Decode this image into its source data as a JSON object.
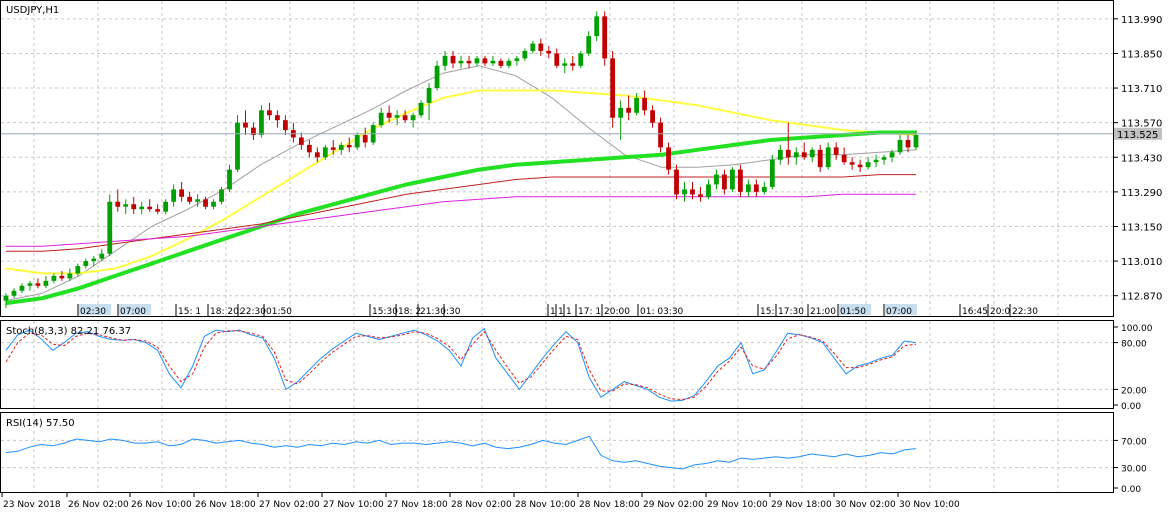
{
  "colors": {
    "background": "#ffffff",
    "grid": "#c8c8c8",
    "frame": "#000000",
    "bull_candle": "#00a000",
    "bear_candle": "#c00000",
    "ma_green": "#22e022",
    "ma_yellow": "#ffff40",
    "ma_red": "#c02020",
    "ma_magenta": "#e020e0",
    "ma_gray": "#a0a0a0",
    "stoch_main": "#1e90ff",
    "stoch_signal": "#e02020",
    "rsi_line": "#1e90ff",
    "price_tag_bg": "#c0c0c0",
    "time_tag_bg": "#c8dff0"
  },
  "chart_data": [
    {
      "type": "candlestick",
      "title": "USDJPY,H1",
      "y_ticks": [
        "113.990",
        "113.850",
        "113.710",
        "113.570",
        "113.430",
        "113.290",
        "113.150",
        "113.010",
        "112.870"
      ],
      "ylim": [
        112.8,
        114.05
      ],
      "current_price": "113.525",
      "current_price_value": 113.525,
      "session_labels": [
        "02:30",
        "07:00",
        "15: 1",
        "18: 20:",
        "22:30",
        "01:50",
        "15:30",
        "18: 2",
        "21:30",
        ":30",
        "1",
        "1",
        "1",
        "17: 1",
        "20:00",
        "01: 03:30",
        "15:",
        "17:30",
        "21:00",
        "01:50",
        "07:00",
        "16:45",
        "20:0",
        "22:30"
      ],
      "highlight_labels": [
        "02:30",
        "07:00",
        "01:50",
        "07:00"
      ],
      "candles": [
        [
          112.85,
          112.88,
          112.82,
          112.87
        ],
        [
          112.87,
          112.9,
          112.86,
          112.89
        ],
        [
          112.89,
          112.92,
          112.88,
          112.91
        ],
        [
          112.91,
          112.93,
          112.89,
          112.92
        ],
        [
          112.92,
          112.94,
          112.9,
          112.91
        ],
        [
          112.91,
          112.95,
          112.9,
          112.93
        ],
        [
          112.93,
          112.96,
          112.92,
          112.95
        ],
        [
          112.95,
          112.97,
          112.93,
          112.94
        ],
        [
          112.94,
          112.98,
          112.93,
          112.96
        ],
        [
          112.96,
          113.0,
          112.95,
          112.99
        ],
        [
          112.99,
          113.02,
          112.98,
          113.01
        ],
        [
          113.01,
          113.03,
          112.99,
          113.02
        ],
        [
          113.02,
          113.06,
          113.01,
          113.04
        ],
        [
          113.04,
          113.28,
          113.03,
          113.25
        ],
        [
          113.25,
          113.3,
          113.21,
          113.23
        ],
        [
          113.23,
          113.26,
          113.2,
          113.24
        ],
        [
          113.24,
          113.27,
          113.2,
          113.22
        ],
        [
          113.22,
          113.25,
          113.2,
          113.23
        ],
        [
          113.23,
          113.26,
          113.21,
          113.22
        ],
        [
          113.22,
          113.24,
          113.2,
          113.21
        ],
        [
          113.21,
          113.26,
          113.2,
          113.25
        ],
        [
          113.25,
          113.32,
          113.23,
          113.3
        ],
        [
          113.3,
          113.33,
          113.25,
          113.27
        ],
        [
          113.27,
          113.29,
          113.24,
          113.25
        ],
        [
          113.25,
          113.28,
          113.23,
          113.26
        ],
        [
          113.26,
          113.27,
          113.22,
          113.23
        ],
        [
          113.23,
          113.26,
          113.22,
          113.25
        ],
        [
          113.25,
          113.31,
          113.24,
          113.3
        ],
        [
          113.3,
          113.4,
          113.29,
          113.38
        ],
        [
          113.38,
          113.6,
          113.37,
          113.57
        ],
        [
          113.57,
          113.62,
          113.52,
          113.55
        ],
        [
          113.55,
          113.57,
          113.5,
          113.52
        ],
        [
          113.52,
          113.64,
          113.51,
          113.62
        ],
        [
          113.62,
          113.65,
          113.58,
          113.6
        ],
        [
          113.6,
          113.62,
          113.55,
          113.58
        ],
        [
          113.58,
          113.6,
          113.52,
          113.54
        ],
        [
          113.54,
          113.57,
          113.49,
          113.51
        ],
        [
          113.51,
          113.53,
          113.46,
          113.48
        ],
        [
          113.48,
          113.5,
          113.43,
          113.45
        ],
        [
          113.45,
          113.47,
          113.41,
          113.43
        ],
        [
          113.43,
          113.48,
          113.42,
          113.47
        ],
        [
          113.47,
          113.5,
          113.44,
          113.46
        ],
        [
          113.46,
          113.49,
          113.44,
          113.48
        ],
        [
          113.48,
          113.51,
          113.45,
          113.47
        ],
        [
          113.47,
          113.53,
          113.46,
          113.52
        ],
        [
          113.52,
          113.55,
          113.47,
          113.49
        ],
        [
          113.49,
          113.57,
          113.48,
          113.56
        ],
        [
          113.56,
          113.63,
          113.55,
          113.61
        ],
        [
          113.61,
          113.64,
          113.57,
          113.59
        ],
        [
          113.59,
          113.62,
          113.56,
          113.6
        ],
        [
          113.6,
          113.62,
          113.57,
          113.58
        ],
        [
          113.58,
          113.61,
          113.55,
          113.6
        ],
        [
          113.6,
          113.66,
          113.59,
          113.65
        ],
        [
          113.65,
          113.73,
          113.58,
          113.71
        ],
        [
          113.71,
          113.82,
          113.7,
          113.8
        ],
        [
          113.8,
          113.86,
          113.78,
          113.84
        ],
        [
          113.84,
          113.86,
          113.79,
          113.81
        ],
        [
          113.81,
          113.84,
          113.79,
          113.82
        ],
        [
          113.82,
          113.84,
          113.79,
          113.81
        ],
        [
          113.81,
          113.84,
          113.8,
          113.83
        ],
        [
          113.83,
          113.84,
          113.8,
          113.81
        ],
        [
          113.81,
          113.84,
          113.8,
          113.82
        ],
        [
          113.82,
          113.83,
          113.79,
          113.8
        ],
        [
          113.8,
          113.83,
          113.79,
          113.82
        ],
        [
          113.82,
          113.84,
          113.8,
          113.83
        ],
        [
          113.83,
          113.87,
          113.82,
          113.86
        ],
        [
          113.86,
          113.9,
          113.85,
          113.89
        ],
        [
          113.89,
          113.91,
          113.84,
          113.86
        ],
        [
          113.86,
          113.88,
          113.83,
          113.85
        ],
        [
          113.85,
          113.87,
          113.79,
          113.8
        ],
        [
          113.8,
          113.83,
          113.77,
          113.81
        ],
        [
          113.81,
          113.84,
          113.78,
          113.8
        ],
        [
          113.8,
          113.86,
          113.79,
          113.85
        ],
        [
          113.85,
          113.94,
          113.84,
          113.92
        ],
        [
          113.92,
          114.02,
          113.9,
          114.0
        ],
        [
          114.0,
          114.02,
          113.8,
          113.83
        ],
        [
          113.83,
          113.86,
          113.55,
          113.59
        ],
        [
          113.59,
          113.66,
          113.5,
          113.63
        ],
        [
          113.63,
          113.68,
          113.58,
          113.61
        ],
        [
          113.61,
          113.69,
          113.6,
          113.67
        ],
        [
          113.67,
          113.7,
          113.6,
          113.62
        ],
        [
          113.62,
          113.64,
          113.55,
          113.57
        ],
        [
          113.57,
          113.59,
          113.45,
          113.47
        ],
        [
          113.47,
          113.49,
          113.36,
          113.38
        ],
        [
          113.38,
          113.4,
          113.26,
          113.28
        ],
        [
          113.28,
          113.33,
          113.25,
          113.3
        ],
        [
          113.3,
          113.33,
          113.26,
          113.28
        ],
        [
          113.28,
          113.31,
          113.25,
          113.27
        ],
        [
          113.27,
          113.34,
          113.26,
          113.32
        ],
        [
          113.32,
          113.38,
          113.3,
          113.36
        ],
        [
          113.36,
          113.38,
          113.28,
          113.3
        ],
        [
          113.3,
          113.39,
          113.29,
          113.38
        ],
        [
          113.38,
          113.4,
          113.27,
          113.29
        ],
        [
          113.29,
          113.34,
          113.27,
          113.32
        ],
        [
          113.32,
          113.34,
          113.27,
          113.29
        ],
        [
          113.29,
          113.33,
          113.28,
          113.31
        ],
        [
          113.31,
          113.44,
          113.3,
          113.42
        ],
        [
          113.42,
          113.48,
          113.4,
          113.46
        ],
        [
          113.46,
          113.57,
          113.4,
          113.43
        ],
        [
          113.43,
          113.47,
          113.4,
          113.45
        ],
        [
          113.45,
          113.49,
          113.42,
          113.43
        ],
        [
          113.43,
          113.47,
          113.41,
          113.46
        ],
        [
          113.46,
          113.48,
          113.37,
          113.39
        ],
        [
          113.39,
          113.49,
          113.38,
          113.47
        ],
        [
          113.47,
          113.49,
          113.42,
          113.44
        ],
        [
          113.44,
          113.47,
          113.4,
          113.41
        ],
        [
          113.41,
          113.43,
          113.38,
          113.4
        ],
        [
          113.4,
          113.42,
          113.37,
          113.39
        ],
        [
          113.39,
          113.43,
          113.38,
          113.41
        ],
        [
          113.41,
          113.44,
          113.39,
          113.42
        ],
        [
          113.42,
          113.44,
          113.4,
          113.43
        ],
        [
          113.43,
          113.46,
          113.41,
          113.45
        ],
        [
          113.45,
          113.52,
          113.44,
          113.5
        ],
        [
          113.5,
          113.52,
          113.45,
          113.47
        ],
        [
          113.47,
          113.54,
          113.46,
          113.52
        ]
      ],
      "moving_averages": [
        {
          "color": "#a0a0a0",
          "values": [
            112.85,
            112.88,
            112.95,
            113.05,
            113.15,
            113.22,
            113.3,
            113.4,
            113.48,
            113.55,
            113.62,
            113.7,
            113.77,
            113.8,
            113.76,
            113.67,
            113.55,
            113.44,
            113.39,
            113.39,
            113.4,
            113.42,
            113.44,
            113.44,
            113.45,
            113.46
          ]
        },
        {
          "color": "#ffff40",
          "values": [
            112.98,
            112.96,
            112.96,
            112.98,
            113.03,
            113.1,
            113.18,
            113.27,
            113.36,
            113.45,
            113.54,
            113.61,
            113.67,
            113.7,
            113.7,
            113.7,
            113.69,
            113.68,
            113.66,
            113.64,
            113.61,
            113.58,
            113.56,
            113.54,
            113.53,
            113.52
          ]
        },
        {
          "color": "#22e022",
          "values": [
            112.84,
            112.86,
            112.9,
            112.95,
            113.0,
            113.05,
            113.1,
            113.15,
            113.2,
            113.24,
            113.28,
            113.32,
            113.35,
            113.38,
            113.4,
            113.41,
            113.42,
            113.43,
            113.44,
            113.46,
            113.48,
            113.5,
            113.51,
            113.52,
            113.53,
            113.53
          ]
        },
        {
          "color": "#c02020",
          "values": [
            113.05,
            113.05,
            113.06,
            113.08,
            113.1,
            113.12,
            113.14,
            113.16,
            113.19,
            113.22,
            113.25,
            113.28,
            113.3,
            113.32,
            113.34,
            113.35,
            113.35,
            113.35,
            113.35,
            113.35,
            113.35,
            113.35,
            113.35,
            113.35,
            113.36,
            113.36
          ]
        },
        {
          "color": "#e020e0",
          "values": [
            113.07,
            113.07,
            113.08,
            113.09,
            113.1,
            113.11,
            113.13,
            113.15,
            113.17,
            113.19,
            113.21,
            113.23,
            113.25,
            113.26,
            113.27,
            113.27,
            113.27,
            113.27,
            113.27,
            113.27,
            113.27,
            113.27,
            113.27,
            113.28,
            113.28,
            113.28
          ]
        }
      ]
    },
    {
      "type": "line",
      "title": "Stoch(8,3,3) 82.21 76.37",
      "y_ticks": [
        "100.00",
        "80.00",
        "20.00",
        "0.00"
      ],
      "ylim": [
        0,
        100
      ],
      "series": [
        {
          "color": "#1e90ff",
          "values": [
            70,
            90,
            96,
            85,
            70,
            80,
            92,
            94,
            88,
            84,
            83,
            84,
            80,
            70,
            40,
            22,
            50,
            88,
            96,
            94,
            96,
            90,
            86,
            60,
            20,
            30,
            45,
            60,
            72,
            82,
            92,
            88,
            84,
            88,
            92,
            96,
            90,
            82,
            70,
            50,
            86,
            98,
            60,
            40,
            20,
            40,
            60,
            78,
            94,
            80,
            35,
            10,
            20,
            30,
            25,
            20,
            10,
            5,
            6,
            12,
            30,
            50,
            60,
            80,
            40,
            45,
            68,
            92,
            90,
            86,
            80,
            60,
            40,
            50,
            54,
            60,
            64,
            82,
            80
          ]
        },
        {
          "color": "#e02020",
          "values": [
            55,
            80,
            92,
            90,
            78,
            76,
            88,
            92,
            90,
            86,
            83,
            84,
            82,
            74,
            50,
            30,
            40,
            74,
            92,
            95,
            95,
            92,
            88,
            68,
            32,
            27,
            40,
            55,
            68,
            78,
            88,
            89,
            86,
            87,
            90,
            94,
            92,
            85,
            75,
            58,
            78,
            94,
            70,
            48,
            28,
            36,
            54,
            72,
            88,
            84,
            45,
            18,
            18,
            27,
            26,
            22,
            14,
            8,
            7,
            10,
            24,
            43,
            56,
            74,
            50,
            46,
            62,
            85,
            90,
            87,
            82,
            66,
            48,
            48,
            52,
            58,
            62,
            76,
            78
          ]
        }
      ]
    },
    {
      "type": "line",
      "title": "RSI(14) 57.50",
      "y_ticks": [
        "70.00",
        "30.00",
        "0.00"
      ],
      "ylim": [
        0,
        100
      ],
      "series": [
        {
          "color": "#1e90ff",
          "values": [
            52,
            54,
            60,
            64,
            62,
            66,
            72,
            70,
            68,
            72,
            70,
            66,
            66,
            68,
            62,
            64,
            72,
            70,
            66,
            68,
            70,
            66,
            64,
            60,
            62,
            60,
            64,
            62,
            66,
            64,
            68,
            66,
            70,
            64,
            66,
            66,
            64,
            66,
            68,
            66,
            62,
            66,
            60,
            58,
            60,
            64,
            70,
            66,
            64,
            70,
            76,
            48,
            40,
            38,
            40,
            36,
            32,
            30,
            28,
            34,
            36,
            40,
            38,
            44,
            42,
            44,
            46,
            44,
            46,
            50,
            48,
            46,
            50,
            46,
            48,
            52,
            50,
            56,
            58
          ]
        }
      ]
    }
  ],
  "x_axis_labels": [
    "23 Nov 2018",
    "26 Nov 02:00",
    "26 Nov 10:00",
    "26 Nov 18:00",
    "27 Nov 02:00",
    "27 Nov 10:00",
    "27 Nov 18:00",
    "28 Nov 02:00",
    "28 Nov 10:00",
    "28 Nov 18:00",
    "29 Nov 02:00",
    "29 Nov 10:00",
    "29 Nov 18:00",
    "30 Nov 02:00",
    "30 Nov 10:00"
  ]
}
